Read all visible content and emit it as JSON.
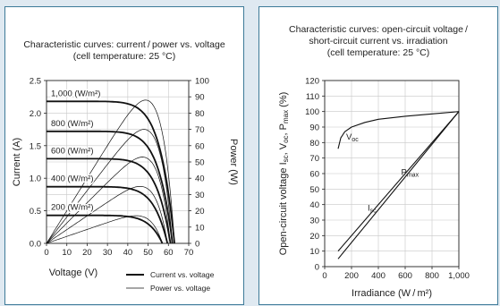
{
  "chart_data": [
    {
      "type": "line",
      "title": [
        "Characteristic curves: current / power vs. voltage",
        "(cell temperature: 25 °C)"
      ],
      "xlabel": "Voltage (V)",
      "ylabel": "Current (A)",
      "y2label": "Power (W)",
      "xlim": [
        0,
        70
      ],
      "ylim": [
        0,
        2.5
      ],
      "y2lim": [
        0,
        100
      ],
      "xticks": [
        "0",
        "10",
        "20",
        "30",
        "40",
        "50",
        "60",
        "70"
      ],
      "yticks": [
        "0.0",
        "0.5",
        "1.0",
        "1.5",
        "2.0",
        "2.5"
      ],
      "y2ticks": [
        "0",
        "10",
        "20",
        "30",
        "40",
        "50",
        "60",
        "70",
        "80",
        "90",
        "100"
      ],
      "legend": [
        {
          "label": "Current vs. voltage",
          "style": "thick"
        },
        {
          "label": "Power vs. voltage",
          "style": "thin"
        }
      ],
      "series": [
        {
          "name": "1,000 (W/m²)",
          "isc": 2.18,
          "voc": 63,
          "pmax": 88,
          "vmp": 48.5
        },
        {
          "name": "800 (W/m²)",
          "isc": 1.72,
          "voc": 62,
          "pmax": 70,
          "vmp": 48.5
        },
        {
          "name": "600 (W/m²)",
          "isc": 1.3,
          "voc": 61,
          "pmax": 53,
          "vmp": 48
        },
        {
          "name": "400 (W/m²)",
          "isc": 0.87,
          "voc": 59.5,
          "pmax": 35,
          "vmp": 47.5
        },
        {
          "name": "200 (W/m²)",
          "isc": 0.43,
          "voc": 57,
          "pmax": 17,
          "vmp": 46
        }
      ]
    },
    {
      "type": "line",
      "title": [
        "Characteristic curves: open-circuit voltage /",
        "short-circuit current vs. irradiation",
        "(cell temperature: 25 °C)"
      ],
      "xlabel": "Irradiance (W / m²)",
      "ylabel": "Open-circuit voltage I_sc, V_oc, P_max (%)",
      "xlim": [
        0,
        1000
      ],
      "ylim": [
        0,
        120
      ],
      "xticks": [
        "0",
        "200",
        "400",
        "600",
        "800",
        "1,000"
      ],
      "yticks": [
        "0",
        "10",
        "20",
        "30",
        "40",
        "50",
        "60",
        "70",
        "80",
        "90",
        "100",
        "110",
        "120"
      ],
      "series": [
        {
          "name": "Voc",
          "points": [
            [
              100,
              76
            ],
            [
              120,
              83
            ],
            [
              150,
              87
            ],
            [
              200,
              90
            ],
            [
              300,
              93
            ],
            [
              400,
              95
            ],
            [
              600,
              97
            ],
            [
              800,
              98.5
            ],
            [
              1000,
              100
            ]
          ]
        },
        {
          "name": "Isc",
          "points": [
            [
              100,
              10
            ],
            [
              1000,
              100
            ]
          ]
        },
        {
          "name": "Pmax",
          "points": [
            [
              100,
              5
            ],
            [
              1000,
              100
            ]
          ]
        }
      ]
    }
  ]
}
